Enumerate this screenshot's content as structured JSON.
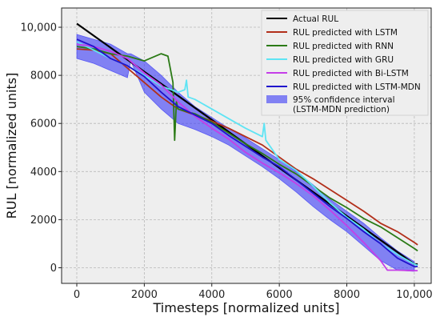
{
  "chart_data": {
    "type": "line",
    "title": "",
    "xlabel": "Timesteps [normalized units]",
    "ylabel": "RUL [normalized units]",
    "xlim": [
      -450,
      10500
    ],
    "ylim": [
      -650,
      10800
    ],
    "xticks": [
      0,
      2000,
      4000,
      6000,
      8000,
      10000
    ],
    "xtick_labels": [
      "0",
      "2000",
      "4000",
      "6000",
      "8000",
      "10,000"
    ],
    "yticks": [
      0,
      2000,
      4000,
      6000,
      8000,
      10000
    ],
    "ytick_labels": [
      "0",
      "2000",
      "4000",
      "6000",
      "8000",
      "10,000"
    ],
    "grid": true,
    "legend_position": "top-right",
    "series": [
      {
        "name": "Actual RUL",
        "color": "#000000",
        "x": [
          0,
          10000,
          10100
        ],
        "y": [
          10150,
          150,
          150
        ]
      },
      {
        "name": "RUL predicted with LSTM",
        "color": "#b22f1a",
        "x": [
          0,
          500,
          1000,
          1500,
          2000,
          2500,
          3000,
          3500,
          4000,
          4500,
          5000,
          5500,
          6000,
          6500,
          7000,
          7500,
          8000,
          8500,
          9000,
          9500,
          10000,
          10100
        ],
        "y": [
          9100,
          9050,
          8900,
          8300,
          7700,
          7100,
          6600,
          6350,
          6100,
          5800,
          5450,
          5100,
          4600,
          4100,
          3700,
          3250,
          2800,
          2350,
          1850,
          1500,
          1050,
          950
        ]
      },
      {
        "name": "RUL predicted with RNN",
        "color": "#2b7a16",
        "x": [
          0,
          500,
          1000,
          1500,
          2000,
          2500,
          2700,
          2850,
          2900,
          2950,
          3000,
          3500,
          4000,
          4500,
          5000,
          5500,
          6000,
          6500,
          7000,
          7500,
          8000,
          8500,
          9000,
          9500,
          10000,
          10100
        ],
        "y": [
          9200,
          9100,
          8900,
          8800,
          8600,
          8900,
          8800,
          7700,
          5300,
          6900,
          6600,
          6400,
          6050,
          5600,
          5150,
          4750,
          4300,
          3900,
          3400,
          2900,
          2500,
          2050,
          1700,
          1250,
          800,
          700
        ]
      },
      {
        "name": "RUL predicted with GRU",
        "color": "#5ee4f4",
        "x": [
          0,
          500,
          1000,
          1500,
          2000,
          2500,
          3000,
          3200,
          3250,
          3300,
          3500,
          4000,
          4500,
          5000,
          5500,
          5550,
          5600,
          6000,
          6500,
          7000,
          7500,
          8000,
          8500,
          9000,
          9500,
          10000,
          10100
        ],
        "y": [
          9400,
          9050,
          8700,
          8400,
          8000,
          7550,
          7300,
          7400,
          7800,
          7100,
          7000,
          6600,
          6200,
          5800,
          5450,
          6000,
          5300,
          4500,
          4050,
          3400,
          2700,
          2100,
          1600,
          1000,
          550,
          150,
          100
        ]
      },
      {
        "name": "RUL predicted with Bi-LSTM",
        "color": "#c53ee8",
        "x": [
          0,
          500,
          1000,
          1500,
          2000,
          2500,
          3000,
          3500,
          4000,
          4500,
          5000,
          5500,
          6000,
          6500,
          7000,
          7500,
          8000,
          8500,
          9000,
          9200,
          9500,
          10000,
          10100
        ],
        "y": [
          9300,
          9200,
          9000,
          8700,
          8100,
          7600,
          6900,
          6300,
          5800,
          5350,
          4800,
          4350,
          3950,
          3500,
          3000,
          2400,
          1750,
          1050,
          300,
          -100,
          -100,
          -120,
          -120
        ]
      },
      {
        "name": "RUL predicted with LSTM-MDN",
        "color": "#1f11cc",
        "x": [
          0,
          500,
          1000,
          1500,
          2000,
          2500,
          3000,
          3500,
          4000,
          4500,
          5000,
          5500,
          6000,
          6500,
          7000,
          7500,
          8000,
          8500,
          9000,
          9500,
          10000,
          10100
        ],
        "y": [
          9500,
          9200,
          8700,
          8400,
          7950,
          7300,
          6700,
          6350,
          6000,
          5500,
          5050,
          4600,
          4200,
          3650,
          3100,
          2550,
          2050,
          1500,
          1000,
          400,
          50,
          50
        ]
      }
    ],
    "confidence_interval": {
      "name": "95% confidence interval\n(LSTM-MDN prediction)",
      "color": "#3d3df5",
      "x": [
        0,
        500,
        1000,
        1500,
        1600,
        2000,
        2500,
        3000,
        3500,
        4000,
        4500,
        5000,
        5500,
        6000,
        6500,
        7000,
        7500,
        8000,
        8500,
        9000,
        9500,
        10000
      ],
      "upper": [
        9700,
        9500,
        9300,
        8900,
        8900,
        8600,
        8000,
        7300,
        6700,
        6250,
        5800,
        5400,
        4950,
        4500,
        4000,
        3450,
        2850,
        2350,
        1850,
        1250,
        700,
        250
      ],
      "lower": [
        8700,
        8500,
        8200,
        7900,
        8600,
        7300,
        6600,
        6000,
        5750,
        5450,
        5100,
        4650,
        4200,
        3700,
        3150,
        2550,
        2000,
        1500,
        900,
        300,
        -100,
        -150
      ]
    },
    "legend_entries": [
      "Actual RUL",
      "RUL predicted with LSTM",
      "RUL predicted with RNN",
      "RUL predicted with GRU",
      "RUL predicted with Bi-LSTM",
      "RUL predicted with LSTM-MDN"
    ],
    "legend_band_lines": [
      "95% confidence interval",
      "(LSTM-MDN prediction)"
    ]
  },
  "colors": {
    "plot_background": "#eeeeee",
    "grid": "#b8b8b8",
    "band_fill": "#3d3df5"
  }
}
